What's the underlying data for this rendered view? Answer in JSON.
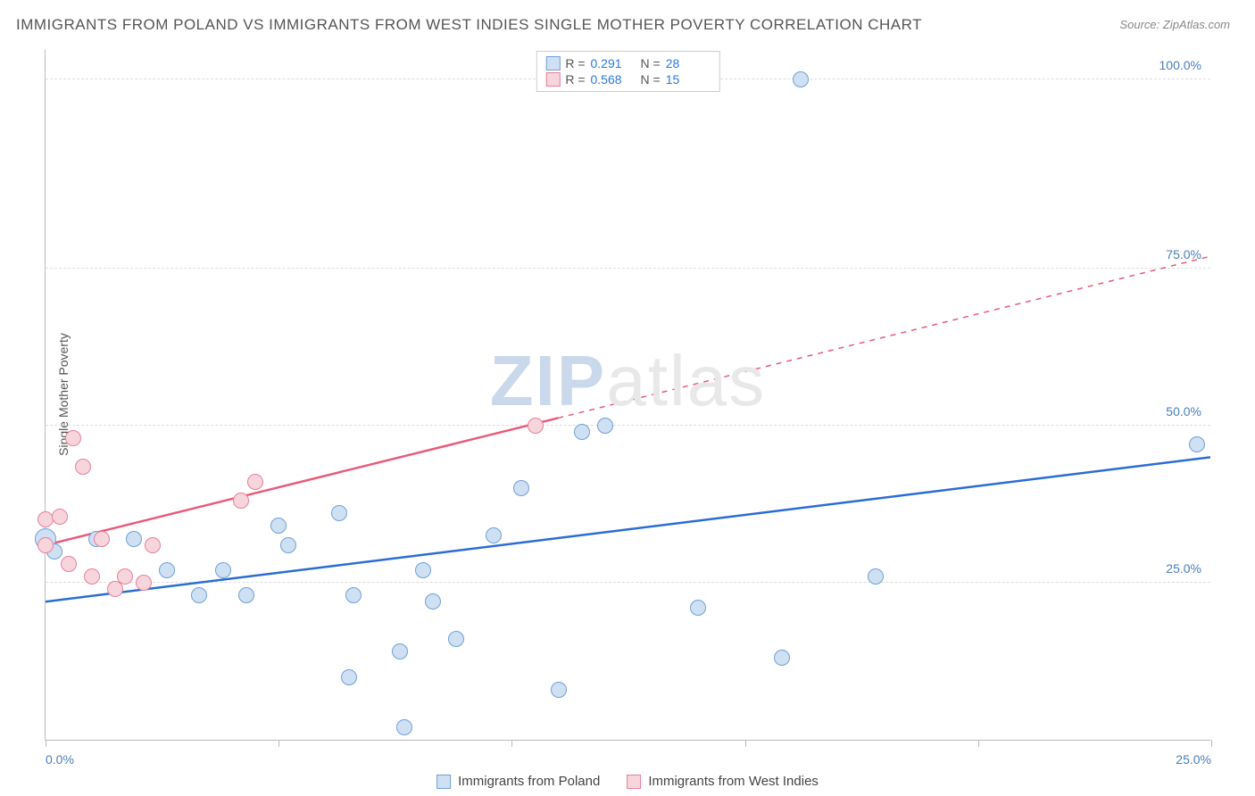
{
  "title": "IMMIGRANTS FROM POLAND VS IMMIGRANTS FROM WEST INDIES SINGLE MOTHER POVERTY CORRELATION CHART",
  "source": "Source: ZipAtlas.com",
  "ylabel": "Single Mother Poverty",
  "watermark": {
    "bold": "ZIP",
    "rest": "atlas"
  },
  "chart": {
    "type": "scatter",
    "xlim": [
      0,
      25
    ],
    "ylim": [
      0,
      110
    ],
    "x_ticks": [
      0,
      5,
      10,
      15,
      20,
      25
    ],
    "x_tick_labels": {
      "0": "0.0%",
      "25": "25.0%"
    },
    "y_gridlines": [
      25,
      50,
      75,
      105
    ],
    "y_tick_labels": {
      "25": "25.0%",
      "50": "50.0%",
      "75": "75.0%",
      "105": "100.0%"
    },
    "grid_color": "#dddddd",
    "axis_color": "#bbbbbb",
    "background_color": "#ffffff",
    "marker_radius": 9,
    "marker_radius_big": 12
  },
  "series": [
    {
      "name": "Immigrants from Poland",
      "fill": "#cfe0f3",
      "stroke": "#6fa0d8",
      "line_color": "#2b6cd4",
      "R": "0.291",
      "N": "28",
      "trend": {
        "x1": 0,
        "y1": 22,
        "x2": 25,
        "y2": 45,
        "dashed_after_x": null
      },
      "points": [
        {
          "x": 0.0,
          "y": 32,
          "r": 12
        },
        {
          "x": 0.2,
          "y": 30
        },
        {
          "x": 1.1,
          "y": 32
        },
        {
          "x": 1.9,
          "y": 32
        },
        {
          "x": 2.6,
          "y": 27
        },
        {
          "x": 3.3,
          "y": 23
        },
        {
          "x": 3.8,
          "y": 27
        },
        {
          "x": 4.3,
          "y": 23
        },
        {
          "x": 5.0,
          "y": 34
        },
        {
          "x": 5.2,
          "y": 31
        },
        {
          "x": 6.3,
          "y": 36
        },
        {
          "x": 6.6,
          "y": 23
        },
        {
          "x": 6.5,
          "y": 10
        },
        {
          "x": 7.6,
          "y": 14
        },
        {
          "x": 7.7,
          "y": 2
        },
        {
          "x": 8.1,
          "y": 27
        },
        {
          "x": 8.3,
          "y": 22
        },
        {
          "x": 8.8,
          "y": 16
        },
        {
          "x": 9.6,
          "y": 32.5
        },
        {
          "x": 10.2,
          "y": 40
        },
        {
          "x": 11.0,
          "y": 8
        },
        {
          "x": 11.5,
          "y": 49
        },
        {
          "x": 12.0,
          "y": 50
        },
        {
          "x": 14.0,
          "y": 21
        },
        {
          "x": 15.8,
          "y": 13
        },
        {
          "x": 16.2,
          "y": 105
        },
        {
          "x": 17.8,
          "y": 26
        },
        {
          "x": 24.7,
          "y": 47
        }
      ]
    },
    {
      "name": "Immigrants from West Indies",
      "fill": "#f7d5dd",
      "stroke": "#e87f9a",
      "line_color": "#e85a7a",
      "R": "0.568",
      "N": "15",
      "trend": {
        "x1": 0,
        "y1": 31,
        "x2": 25,
        "y2": 77,
        "dashed_after_x": 11
      },
      "points": [
        {
          "x": 0.0,
          "y": 31
        },
        {
          "x": 0.0,
          "y": 35
        },
        {
          "x": 0.3,
          "y": 35.5
        },
        {
          "x": 0.5,
          "y": 28
        },
        {
          "x": 0.6,
          "y": 48
        },
        {
          "x": 0.8,
          "y": 43.5
        },
        {
          "x": 1.0,
          "y": 26
        },
        {
          "x": 1.2,
          "y": 32
        },
        {
          "x": 1.5,
          "y": 24
        },
        {
          "x": 1.7,
          "y": 26
        },
        {
          "x": 2.1,
          "y": 25
        },
        {
          "x": 2.3,
          "y": 31
        },
        {
          "x": 4.2,
          "y": 38
        },
        {
          "x": 4.5,
          "y": 41
        },
        {
          "x": 10.5,
          "y": 50
        }
      ]
    }
  ],
  "r_legend_labels": {
    "R": "R  =",
    "N": "N  ="
  },
  "bottom_legend": [
    {
      "label": "Immigrants from Poland",
      "fill": "#cfe0f3",
      "stroke": "#6fa0d8"
    },
    {
      "label": "Immigrants from West Indies",
      "fill": "#f7d5dd",
      "stroke": "#e87f9a"
    }
  ]
}
